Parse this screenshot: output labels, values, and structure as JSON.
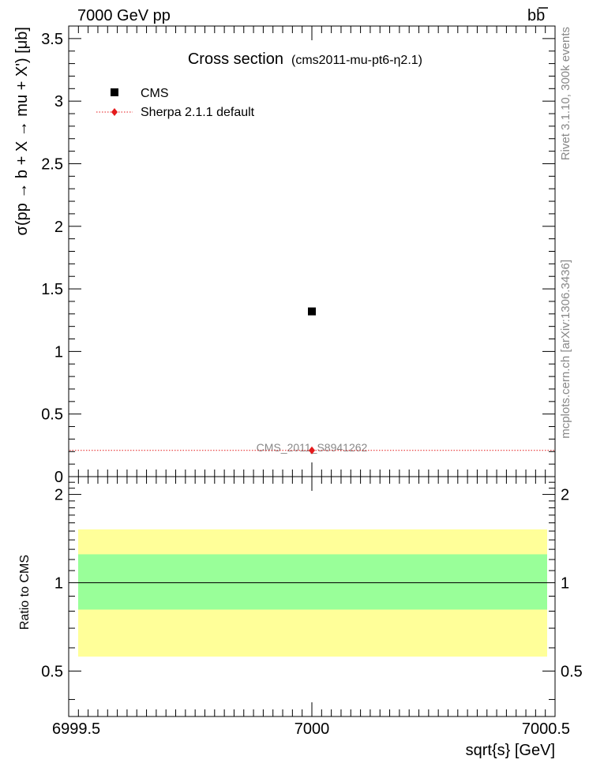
{
  "header": {
    "left": "7000 GeV pp",
    "right_main": "bb",
    "right_bar": "b"
  },
  "side_text": {
    "rivet": "Rivet 3.1.10,  300k events",
    "mcplots": "mcplots.cern.ch [arXiv:1306.3436]"
  },
  "chart_data": [
    {
      "type": "scatter",
      "panel": "main",
      "title": "Cross section",
      "subtitle": "(cms2011-mu-pt6-η2.1)",
      "ylabel": "σ(pp → b + X → mu + X') [μb]",
      "xlim": [
        6999.5,
        7000.5
      ],
      "ylim": [
        0,
        3.6
      ],
      "ytick_labels": [
        "0",
        "0.5",
        "1",
        "1.5",
        "2",
        "2.5",
        "3",
        "3.5"
      ],
      "ytick_values": [
        0,
        0.5,
        1,
        1.5,
        2,
        2.5,
        3,
        3.5
      ],
      "legend_placement": "top-left",
      "analysis_label": "CMS_2011_S8941262",
      "series": [
        {
          "name": "CMS",
          "marker": "square",
          "color": "#000000",
          "x": [
            7000
          ],
          "y": [
            1.32
          ]
        },
        {
          "name": "Sherpa 2.1.1 default",
          "marker": "diamond",
          "color": "#e41a1c",
          "line": "dotted",
          "x": [
            7000
          ],
          "y": [
            0.21
          ]
        }
      ]
    },
    {
      "type": "band",
      "panel": "ratio",
      "ylabel": "Ratio to CMS",
      "xlabel": "sqrt{s} [GeV]",
      "xlim": [
        6999.5,
        7000.5
      ],
      "ylim": [
        0.35,
        2.3
      ],
      "ytick_labels": [
        "0.5",
        "1",
        "2"
      ],
      "ytick_values": [
        0.5,
        1,
        2
      ],
      "xtick_labels": [
        "6999.5",
        "7000",
        "7000.5"
      ],
      "xtick_values": [
        6999.5,
        7000,
        7000.5
      ],
      "reference_line": 1,
      "bands": [
        {
          "name": "outer",
          "color": "#ffff99",
          "lo": 0.56,
          "hi": 1.52
        },
        {
          "name": "inner",
          "color": "#99ff99",
          "lo": 0.81,
          "hi": 1.25
        }
      ]
    }
  ]
}
